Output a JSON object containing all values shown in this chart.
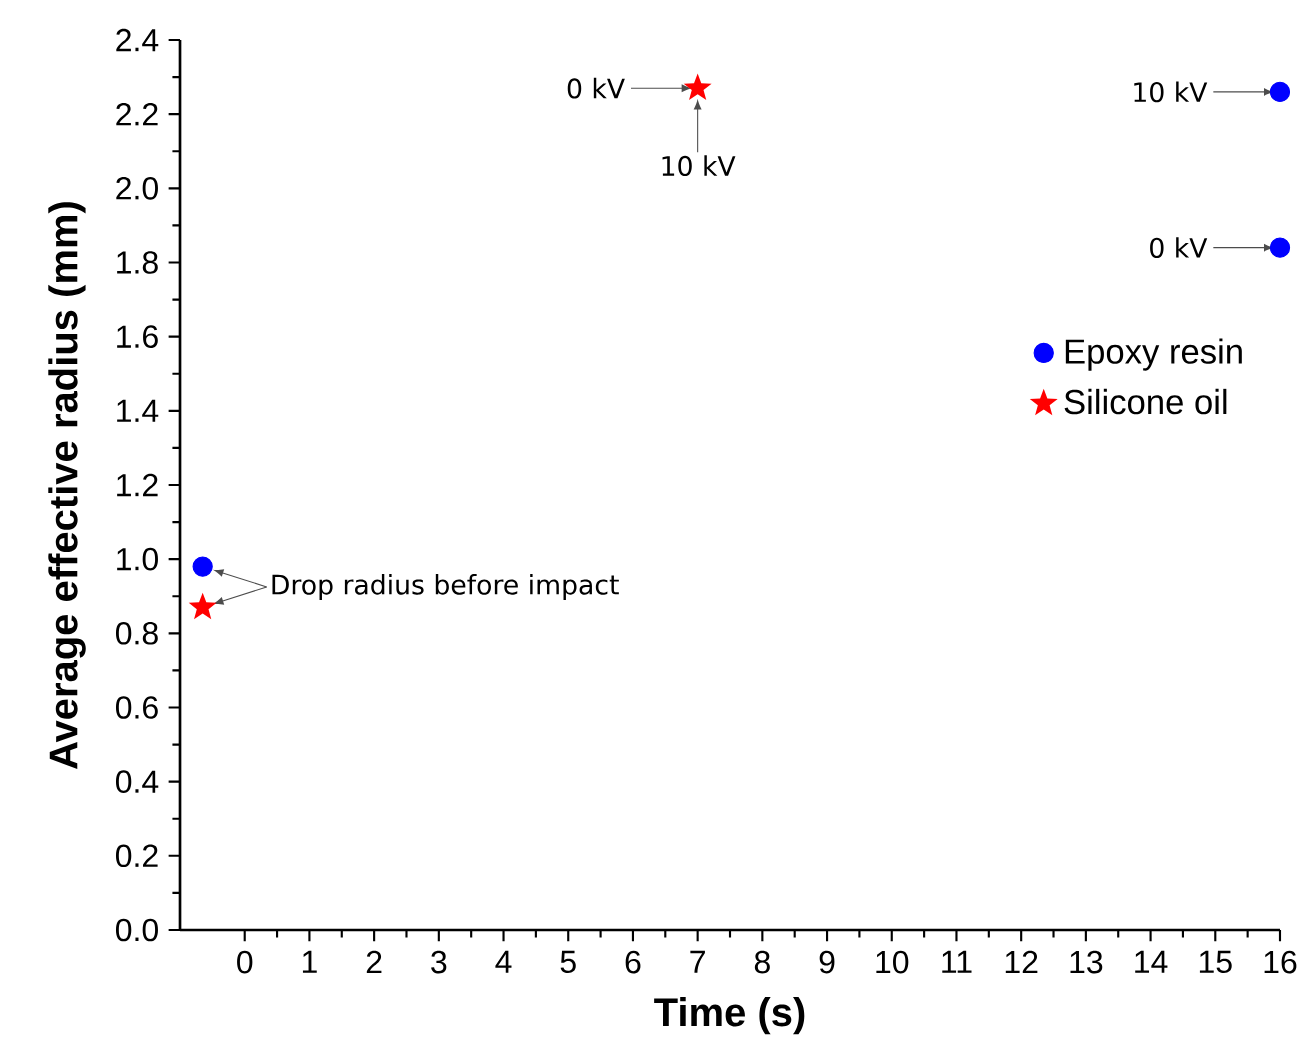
{
  "chart_data": {
    "type": "scatter",
    "xlabel": "Time (s)",
    "ylabel": "Average effective radius (mm)",
    "xlim": [
      -1,
      16
    ],
    "ylim": [
      0,
      2.4
    ],
    "xticks": [
      0,
      1,
      2,
      3,
      4,
      5,
      6,
      7,
      8,
      9,
      10,
      11,
      12,
      13,
      14,
      15,
      16
    ],
    "yticks": [
      {
        "value": 0,
        "label": "0.0"
      },
      {
        "value": 0.2,
        "label": "0.2"
      },
      {
        "value": 0.4,
        "label": "0.4"
      },
      {
        "value": 0.6,
        "label": "0.6"
      },
      {
        "value": 0.8,
        "label": "0.8"
      },
      {
        "value": 1.0,
        "label": "1.0"
      },
      {
        "value": 1.2,
        "label": "1.2"
      },
      {
        "value": 1.4,
        "label": "1.4"
      },
      {
        "value": 1.6,
        "label": "1.6"
      },
      {
        "value": 1.8,
        "label": "1.8"
      },
      {
        "value": 2.0,
        "label": "2.0"
      },
      {
        "value": 2.2,
        "label": "2.2"
      },
      {
        "value": 2.4,
        "label": "2.4"
      }
    ],
    "series": [
      {
        "name": "Epoxy resin",
        "color": "#0000ff",
        "marker": "circle",
        "x": [
          -0.65,
          16,
          16
        ],
        "values": [
          0.98,
          1.84,
          2.26
        ]
      },
      {
        "name": "Silicone oil",
        "color": "#ff0000",
        "marker": "star",
        "x": [
          -0.65,
          7
        ],
        "values": [
          0.87,
          2.27
        ]
      }
    ],
    "annotations": [
      {
        "text": "0 kV",
        "x": 7,
        "y": 2.27
      },
      {
        "text": "10 kV",
        "x": 7,
        "y": 2.27
      },
      {
        "text": "10 kV",
        "x": 16,
        "y": 2.26
      },
      {
        "text": "0 kV",
        "x": 16,
        "y": 1.84
      },
      {
        "text": "Drop radius before impact",
        "x": -0.65,
        "y": 0.98
      }
    ],
    "legend": "right",
    "grid": false
  }
}
